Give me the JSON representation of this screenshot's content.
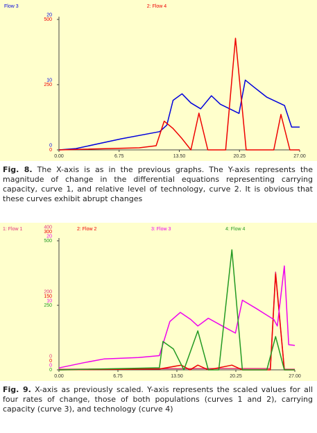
{
  "chart_data": [
    {
      "type": "line",
      "xlim": [
        0,
        27
      ],
      "xticks": [
        {
          "value": 0,
          "label": "0.00"
        },
        {
          "value": 6.75,
          "label": "6.75"
        },
        {
          "value": 13.5,
          "label": "13.50"
        },
        {
          "value": 20.25,
          "label": "20.25"
        },
        {
          "value": 27,
          "label": "27.00"
        }
      ],
      "series": [
        {
          "name": "Flow 3",
          "color": "#0000dd",
          "ylim": [
            0,
            20
          ],
          "yticks": [
            0,
            10,
            20
          ],
          "x": [
            0,
            1.9,
            7,
            11.3,
            12.1,
            12.8,
            13.8,
            14.8,
            15.9,
            17.1,
            18.1,
            20.2,
            20.9,
            21.8,
            23.3,
            25.3,
            26.1,
            27
          ],
          "values": [
            0,
            0.2,
            1.7,
            2.8,
            3.8,
            7.6,
            8.6,
            7.2,
            6.3,
            8.3,
            7,
            5.6,
            10.7,
            9.7,
            8.1,
            6.8,
            3.5,
            3.5
          ]
        },
        {
          "name": "2: Flow 4",
          "color": "#ee0000",
          "ylim": [
            0,
            500
          ],
          "yticks": [
            0,
            250,
            500
          ],
          "x": [
            0,
            9,
            10.9,
            11.8,
            12.8,
            13.8,
            14.8,
            15.7,
            16.7,
            18.7,
            19.8,
            21,
            24.1,
            24.9,
            25.9,
            27
          ],
          "values": [
            0,
            8,
            16,
            110,
            82,
            43,
            0,
            141,
            0,
            0,
            428,
            0,
            0,
            136,
            0,
            0
          ]
        }
      ]
    },
    {
      "type": "line",
      "xlim": [
        0,
        27
      ],
      "xticks": [
        {
          "value": 0,
          "label": "0.00"
        },
        {
          "value": 6.75,
          "label": "6.75"
        },
        {
          "value": 13.5,
          "label": "13.50"
        },
        {
          "value": 20.25,
          "label": "20.25"
        },
        {
          "value": 27,
          "label": "27.00"
        }
      ],
      "series": [
        {
          "name": "1: Flow 1",
          "color": "#e0307a",
          "ylim": [
            0,
            400
          ],
          "yticks": [
            0,
            200,
            400
          ],
          "x": [
            0,
            17.1,
            24.2,
            24.8,
            25.8,
            27
          ],
          "values": [
            2,
            4,
            4,
            303,
            2,
            2
          ]
        },
        {
          "name": "2: Flow 2",
          "color": "#ee0000",
          "ylim": [
            0,
            300
          ],
          "yticks": [
            0,
            150,
            300
          ],
          "x": [
            0,
            11.5,
            14,
            15,
            15.9,
            17.1,
            19.8,
            21,
            24.2,
            24.8,
            25.8,
            27
          ],
          "values": [
            0,
            2,
            11,
            0,
            11,
            0,
            11,
            0,
            0,
            223,
            0,
            0
          ]
        },
        {
          "name": "3: Flow 3",
          "color": "#ee00ee",
          "ylim": [
            0,
            20
          ],
          "yticks": [
            0,
            10,
            20
          ],
          "x": [
            0,
            2.8,
            5.2,
            9.1,
            11.5,
            12.7,
            13.9,
            15.1,
            15.9,
            17.1,
            18.7,
            20.2,
            21,
            22.6,
            24.6,
            25,
            25.8,
            26.3,
            27
          ],
          "values": [
            0.3,
            1.1,
            1.7,
            1.9,
            2.2,
            7.5,
            8.9,
            7.8,
            6.8,
            8,
            6.8,
            5.7,
            10.8,
            9.5,
            7.8,
            6.8,
            16.1,
            3.9,
            3.8
          ]
        },
        {
          "name": "4: Flow 4",
          "color": "#229922",
          "ylim": [
            0,
            500
          ],
          "yticks": [
            0,
            250,
            500
          ],
          "x": [
            0,
            11.5,
            11.9,
            13.1,
            14.3,
            15.9,
            17.1,
            18.3,
            19.8,
            21,
            23.8,
            24.8,
            25.8,
            27
          ],
          "values": [
            0,
            8,
            110,
            81,
            0,
            151,
            0,
            0,
            465,
            0,
            0,
            129,
            0,
            0
          ]
        }
      ]
    }
  ],
  "captions": [
    {
      "label": "Fig. 8.",
      "text": "The X-axis is as in the previous graphs. The Y-axis represents the magnitude of change in the differential equations representing carrying capacity, curve 1, and relative level of technology, curve 2. It is obvious that these curves exhibit abrupt changes"
    },
    {
      "label": "Fig. 9.",
      "text": "X-axis as previously scaled. Y-axis represents the scaled values for all four rates of change, those of both populations (curves 1 and 2), carrying capacity (curve 3), and technology (curve 4)"
    }
  ]
}
